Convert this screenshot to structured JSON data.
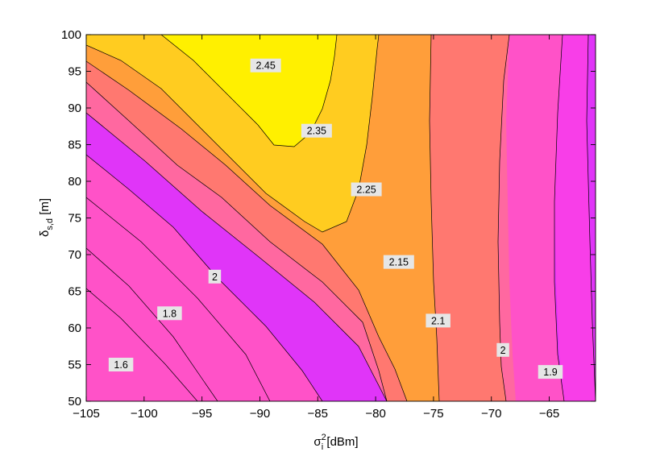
{
  "chart_data": {
    "type": "contour",
    "xlabel": {
      "main": "σ",
      "sup": "2",
      "sub": "i",
      "unit": " [dBm]"
    },
    "ylabel": {
      "main": "δ",
      "sub": "s,d",
      "unit": " [m]"
    },
    "xlim": [
      -105,
      -61
    ],
    "ylim": [
      50,
      100
    ],
    "xticks": [
      "−105",
      "−100",
      "−95",
      "−90",
      "−85",
      "−80",
      "−75",
      "−70",
      "−65"
    ],
    "xtick_values": [
      -105,
      -100,
      -95,
      -90,
      -85,
      -80,
      -75,
      -70,
      -65
    ],
    "yticks": [
      "50",
      "55",
      "60",
      "65",
      "70",
      "75",
      "80",
      "85",
      "90",
      "95",
      "100"
    ],
    "ytick_values": [
      50,
      55,
      60,
      65,
      70,
      75,
      80,
      85,
      90,
      95,
      100
    ],
    "grid": false,
    "colors": {
      "level_1_5": "#b030ff",
      "level_1_6": "#c832ff",
      "level_1_7": "#e035f8",
      "level_1_8": "#f83ee8",
      "level_1_9": "#ff52c8",
      "level_2_0": "#ff68a0",
      "level_2_1": "#ff7870",
      "level_2_15": "#ff9e3a",
      "level_2_25": "#ffcc20",
      "level_2_35": "#fff000"
    },
    "contour_labels": [
      {
        "text": "2.45",
        "x": -89.5,
        "y": 95.8
      },
      {
        "text": "2.35",
        "x": -85.1,
        "y": 86.9
      },
      {
        "text": "2.25",
        "x": -80.8,
        "y": 78.9
      },
      {
        "text": "2.15",
        "x": -78.0,
        "y": 69.0
      },
      {
        "text": "2.1",
        "x": -74.6,
        "y": 61.0
      },
      {
        "text": "2",
        "x": -93.9,
        "y": 67.0
      },
      {
        "text": "1.8",
        "x": -97.8,
        "y": 62.0
      },
      {
        "text": "1.6",
        "x": -102.0,
        "y": 55.0
      },
      {
        "text": "2",
        "x": -69.0,
        "y": 57.0
      },
      {
        "text": "1.9",
        "x": -64.9,
        "y": 54.0
      }
    ]
  }
}
